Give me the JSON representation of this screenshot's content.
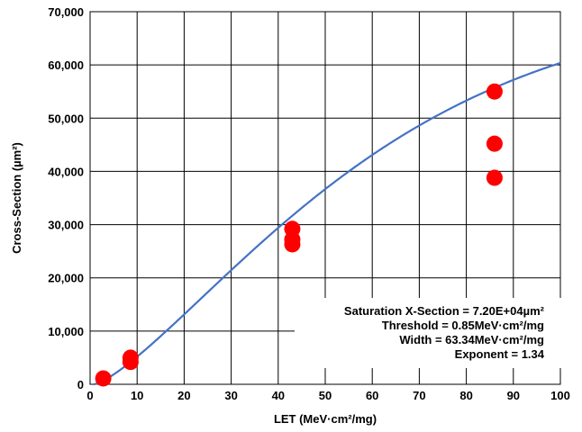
{
  "chart_data": {
    "type": "scatter",
    "xlabel": "LET (MeV·cm²/mg)",
    "ylabel": "Cross-Section (µm²)",
    "xlim": [
      0,
      100
    ],
    "ylim": [
      0,
      70000
    ],
    "x_ticks": [
      0,
      10,
      20,
      30,
      40,
      50,
      60,
      70,
      80,
      90,
      100
    ],
    "y_ticks": [
      0,
      10000,
      20000,
      30000,
      40000,
      50000,
      60000,
      70000
    ],
    "x_tick_labels": [
      "0",
      "10",
      "20",
      "30",
      "40",
      "50",
      "60",
      "70",
      "80",
      "90",
      "100"
    ],
    "y_tick_labels": [
      "0",
      "10,000",
      "20,000",
      "30,000",
      "40,000",
      "50,000",
      "60,000",
      "70,000"
    ],
    "grid": true,
    "series": [
      {
        "kind": "scatter",
        "color": "#ff0000",
        "points": [
          {
            "x": 2.8,
            "y": 1100
          },
          {
            "x": 8.6,
            "y": 4200
          },
          {
            "x": 8.6,
            "y": 5000
          },
          {
            "x": 43,
            "y": 26300
          },
          {
            "x": 43,
            "y": 27200
          },
          {
            "x": 43,
            "y": 29200
          },
          {
            "x": 86,
            "y": 38800
          },
          {
            "x": 86,
            "y": 45200
          },
          {
            "x": 86,
            "y": 55000
          }
        ]
      },
      {
        "kind": "weibull_fit",
        "color": "#4472c4",
        "saturation": 72000,
        "threshold": 0.85,
        "width": 63.34,
        "exponent": 1.34
      }
    ],
    "annotations": [
      "Saturation X-Section = 7.20E+04µm²",
      "Threshold = 0.85MeV·cm²/mg",
      "Width = 63.34MeV·cm²/mg",
      "Exponent = 1.34"
    ]
  }
}
